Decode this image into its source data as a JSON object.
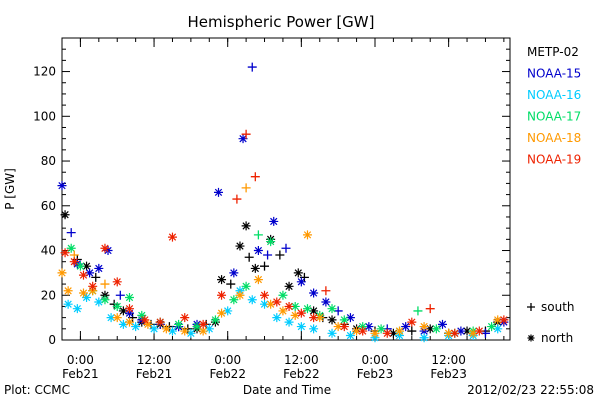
{
  "chart_data": {
    "type": "scatter",
    "title": "Hemispheric Power [GW]",
    "ylabel": "P [GW]",
    "xlabel": "Date and Time",
    "xlim": [
      "2012-02-20T21:00",
      "2012-02-23T22:00"
    ],
    "ylim": [
      0,
      135
    ],
    "y_ticks": [
      0,
      20,
      40,
      60,
      80,
      100,
      120
    ],
    "x_ticks": [
      {
        "t": "2012-02-21T00:00",
        "time": "0:00",
        "date": "Feb21"
      },
      {
        "t": "2012-02-21T12:00",
        "time": "12:00",
        "date": "Feb21"
      },
      {
        "t": "2012-02-22T00:00",
        "time": "0:00",
        "date": "Feb22"
      },
      {
        "t": "2012-02-22T12:00",
        "time": "12:00",
        "date": "Feb22"
      },
      {
        "t": "2012-02-23T00:00",
        "time": "0:00",
        "date": "Feb23"
      },
      {
        "t": "2012-02-23T12:00",
        "time": "12:00",
        "date": "Feb23"
      }
    ],
    "grid": false,
    "legend_position": "right",
    "hemisphere_legend": [
      {
        "symbol": "+",
        "label": "south"
      },
      {
        "symbol": "*",
        "label": "north"
      }
    ],
    "series": [
      {
        "name": "METP-02",
        "color": "#000000",
        "points": [
          [
            "2012-02-20T21:30",
            56,
            "north"
          ],
          [
            "2012-02-20T23:30",
            36,
            "south"
          ],
          [
            "2012-02-21T01:00",
            33,
            "north"
          ],
          [
            "2012-02-21T02:30",
            28,
            "south"
          ],
          [
            "2012-02-21T04:00",
            20,
            "north"
          ],
          [
            "2012-02-21T05:30",
            16,
            "south"
          ],
          [
            "2012-02-21T07:00",
            13,
            "north"
          ],
          [
            "2012-02-21T08:30",
            10,
            "south"
          ],
          [
            "2012-02-21T10:00",
            8,
            "north"
          ],
          [
            "2012-02-21T11:30",
            7,
            "south"
          ],
          [
            "2012-02-21T13:00",
            7,
            "north"
          ],
          [
            "2012-02-21T14:30",
            6,
            "south"
          ],
          [
            "2012-02-21T16:00",
            6,
            "north"
          ],
          [
            "2012-02-21T17:30",
            5,
            "south"
          ],
          [
            "2012-02-21T19:00",
            5,
            "north"
          ],
          [
            "2012-02-21T20:30",
            7,
            "south"
          ],
          [
            "2012-02-21T22:00",
            8,
            "north"
          ],
          [
            "2012-02-21T23:00",
            27,
            "north"
          ],
          [
            "2012-02-22T00:30",
            25,
            "south"
          ],
          [
            "2012-02-22T02:00",
            42,
            "north"
          ],
          [
            "2012-02-22T03:00",
            51,
            "north"
          ],
          [
            "2012-02-22T03:30",
            37,
            "south"
          ],
          [
            "2012-02-22T04:30",
            32,
            "north"
          ],
          [
            "2012-02-22T06:00",
            33,
            "south"
          ],
          [
            "2012-02-22T07:00",
            45,
            "north"
          ],
          [
            "2012-02-22T08:30",
            38,
            "south"
          ],
          [
            "2012-02-22T10:00",
            24,
            "north"
          ],
          [
            "2012-02-22T11:30",
            30,
            "north"
          ],
          [
            "2012-02-22T12:30",
            28,
            "south"
          ],
          [
            "2012-02-22T14:00",
            13,
            "north"
          ],
          [
            "2012-02-22T15:30",
            10,
            "south"
          ],
          [
            "2012-02-22T17:00",
            9,
            "north"
          ],
          [
            "2012-02-22T19:00",
            7,
            "south"
          ],
          [
            "2012-02-22T21:00",
            5,
            "north"
          ],
          [
            "2012-02-23T00:00",
            4,
            "south"
          ],
          [
            "2012-02-23T03:00",
            3,
            "north"
          ],
          [
            "2012-02-23T06:00",
            4,
            "south"
          ],
          [
            "2012-02-23T09:00",
            5,
            "north"
          ],
          [
            "2012-02-23T12:00",
            3,
            "south"
          ],
          [
            "2012-02-23T15:00",
            4,
            "north"
          ],
          [
            "2012-02-23T18:00",
            4,
            "south"
          ],
          [
            "2012-02-23T20:00",
            8,
            "north"
          ]
        ]
      },
      {
        "name": "NOAA-15",
        "color": "#0000cc",
        "points": [
          [
            "2012-02-20T21:00",
            69,
            "north"
          ],
          [
            "2012-02-20T22:30",
            48,
            "south"
          ],
          [
            "2012-02-20T23:30",
            34,
            "north"
          ],
          [
            "2012-02-21T01:30",
            30,
            "north"
          ],
          [
            "2012-02-21T03:00",
            32,
            "north"
          ],
          [
            "2012-02-21T04:30",
            40,
            "north"
          ],
          [
            "2012-02-21T06:30",
            20,
            "south"
          ],
          [
            "2012-02-21T08:00",
            12,
            "north"
          ],
          [
            "2012-02-21T10:00",
            9,
            "north"
          ],
          [
            "2012-02-21T13:00",
            7,
            "south"
          ],
          [
            "2012-02-21T16:00",
            6,
            "north"
          ],
          [
            "2012-02-21T19:00",
            7,
            "north"
          ],
          [
            "2012-02-21T22:30",
            66,
            "north"
          ],
          [
            "2012-02-22T01:00",
            30,
            "north"
          ],
          [
            "2012-02-22T02:30",
            90,
            "north"
          ],
          [
            "2012-02-22T04:00",
            122,
            "south"
          ],
          [
            "2012-02-22T05:00",
            40,
            "north"
          ],
          [
            "2012-02-22T06:30",
            38,
            "south"
          ],
          [
            "2012-02-22T07:30",
            53,
            "north"
          ],
          [
            "2012-02-22T09:30",
            41,
            "south"
          ],
          [
            "2012-02-22T12:00",
            26,
            "north"
          ],
          [
            "2012-02-22T14:00",
            21,
            "north"
          ],
          [
            "2012-02-22T16:00",
            17,
            "north"
          ],
          [
            "2012-02-22T18:00",
            13,
            "south"
          ],
          [
            "2012-02-22T20:00",
            10,
            "north"
          ],
          [
            "2012-02-22T23:00",
            6,
            "north"
          ],
          [
            "2012-02-23T02:00",
            5,
            "south"
          ],
          [
            "2012-02-23T05:00",
            6,
            "north"
          ],
          [
            "2012-02-23T08:00",
            4,
            "north"
          ],
          [
            "2012-02-23T11:00",
            7,
            "north"
          ],
          [
            "2012-02-23T14:00",
            4,
            "north"
          ],
          [
            "2012-02-23T18:00",
            3,
            "south"
          ],
          [
            "2012-02-23T21:00",
            8,
            "north"
          ]
        ]
      },
      {
        "name": "NOAA-16",
        "color": "#00ccff",
        "points": [
          [
            "2012-02-20T22:00",
            16,
            "north"
          ],
          [
            "2012-02-20T23:30",
            14,
            "north"
          ],
          [
            "2012-02-21T01:00",
            19,
            "north"
          ],
          [
            "2012-02-21T03:00",
            17,
            "north"
          ],
          [
            "2012-02-21T05:00",
            10,
            "north"
          ],
          [
            "2012-02-21T07:00",
            7,
            "north"
          ],
          [
            "2012-02-21T09:00",
            6,
            "north"
          ],
          [
            "2012-02-21T12:00",
            5,
            "north"
          ],
          [
            "2012-02-21T15:00",
            4,
            "north"
          ],
          [
            "2012-02-21T18:00",
            3,
            "north"
          ],
          [
            "2012-02-21T21:00",
            5,
            "north"
          ],
          [
            "2012-02-22T00:00",
            13,
            "north"
          ],
          [
            "2012-02-22T02:00",
            22,
            "north"
          ],
          [
            "2012-02-22T04:00",
            18,
            "north"
          ],
          [
            "2012-02-22T06:00",
            16,
            "north"
          ],
          [
            "2012-02-22T08:00",
            10,
            "north"
          ],
          [
            "2012-02-22T10:00",
            8,
            "north"
          ],
          [
            "2012-02-22T12:00",
            6,
            "north"
          ],
          [
            "2012-02-22T14:00",
            5,
            "north"
          ],
          [
            "2012-02-22T17:00",
            3,
            "north"
          ],
          [
            "2012-02-22T20:00",
            2,
            "north"
          ],
          [
            "2012-02-23T00:00",
            1,
            "north"
          ],
          [
            "2012-02-23T04:00",
            2,
            "north"
          ],
          [
            "2012-02-23T08:00",
            1,
            "north"
          ],
          [
            "2012-02-23T12:00",
            2,
            "north"
          ],
          [
            "2012-02-23T16:00",
            2,
            "north"
          ],
          [
            "2012-02-23T20:00",
            5,
            "north"
          ]
        ]
      },
      {
        "name": "NOAA-17",
        "color": "#00dd66",
        "points": [
          [
            "2012-02-20T22:30",
            41,
            "north"
          ],
          [
            "2012-02-21T00:00",
            33,
            "north"
          ],
          [
            "2012-02-21T02:00",
            22,
            "north"
          ],
          [
            "2012-02-21T04:00",
            18,
            "north"
          ],
          [
            "2012-02-21T06:00",
            15,
            "north"
          ],
          [
            "2012-02-21T08:00",
            19,
            "north"
          ],
          [
            "2012-02-21T10:00",
            11,
            "north"
          ],
          [
            "2012-02-21T13:00",
            8,
            "north"
          ],
          [
            "2012-02-21T16:00",
            7,
            "north"
          ],
          [
            "2012-02-21T19:00",
            6,
            "north"
          ],
          [
            "2012-02-21T22:00",
            9,
            "north"
          ],
          [
            "2012-02-22T01:00",
            18,
            "north"
          ],
          [
            "2012-02-22T03:00",
            24,
            "north"
          ],
          [
            "2012-02-22T05:00",
            47,
            "south"
          ],
          [
            "2012-02-22T07:00",
            44,
            "north"
          ],
          [
            "2012-02-22T09:00",
            20,
            "north"
          ],
          [
            "2012-02-22T11:00",
            15,
            "north"
          ],
          [
            "2012-02-22T13:00",
            14,
            "north"
          ],
          [
            "2012-02-22T15:00",
            11,
            "north"
          ],
          [
            "2012-02-22T17:00",
            14,
            "north"
          ],
          [
            "2012-02-22T19:00",
            9,
            "north"
          ],
          [
            "2012-02-22T22:00",
            6,
            "north"
          ],
          [
            "2012-02-23T01:00",
            5,
            "north"
          ],
          [
            "2012-02-23T04:00",
            4,
            "north"
          ],
          [
            "2012-02-23T07:00",
            13,
            "south"
          ],
          [
            "2012-02-23T10:00",
            5,
            "north"
          ],
          [
            "2012-02-23T13:00",
            3,
            "north"
          ],
          [
            "2012-02-23T16:00",
            4,
            "north"
          ],
          [
            "2012-02-23T19:00",
            6,
            "north"
          ]
        ]
      },
      {
        "name": "NOAA-18",
        "color": "#ff9900",
        "points": [
          [
            "2012-02-20T21:00",
            30,
            "north"
          ],
          [
            "2012-02-20T22:00",
            22,
            "north"
          ],
          [
            "2012-02-20T23:00",
            38,
            "south"
          ],
          [
            "2012-02-21T00:30",
            21,
            "north"
          ],
          [
            "2012-02-21T02:00",
            22,
            "north"
          ],
          [
            "2012-02-21T04:00",
            25,
            "south"
          ],
          [
            "2012-02-21T06:00",
            10,
            "north"
          ],
          [
            "2012-02-21T08:00",
            8,
            "north"
          ],
          [
            "2012-02-21T11:00",
            7,
            "north"
          ],
          [
            "2012-02-21T14:00",
            5,
            "north"
          ],
          [
            "2012-02-21T17:00",
            4,
            "north"
          ],
          [
            "2012-02-21T20:00",
            4,
            "north"
          ],
          [
            "2012-02-21T23:00",
            12,
            "north"
          ],
          [
            "2012-02-22T02:00",
            20,
            "north"
          ],
          [
            "2012-02-22T03:00",
            68,
            "south"
          ],
          [
            "2012-02-22T05:00",
            27,
            "north"
          ],
          [
            "2012-02-22T07:00",
            16,
            "north"
          ],
          [
            "2012-02-22T09:00",
            13,
            "north"
          ],
          [
            "2012-02-22T11:00",
            11,
            "north"
          ],
          [
            "2012-02-22T13:00",
            47,
            "north"
          ],
          [
            "2012-02-22T15:00",
            10,
            "north"
          ],
          [
            "2012-02-22T18:00",
            6,
            "north"
          ],
          [
            "2012-02-22T21:00",
            4,
            "north"
          ],
          [
            "2012-02-23T00:00",
            3,
            "north"
          ],
          [
            "2012-02-23T04:00",
            4,
            "north"
          ],
          [
            "2012-02-23T08:00",
            6,
            "north"
          ],
          [
            "2012-02-23T12:00",
            3,
            "north"
          ],
          [
            "2012-02-23T16:00",
            3,
            "north"
          ],
          [
            "2012-02-23T20:00",
            9,
            "north"
          ]
        ]
      },
      {
        "name": "NOAA-19",
        "color": "#ee2200",
        "points": [
          [
            "2012-02-20T21:30",
            39,
            "north"
          ],
          [
            "2012-02-20T23:00",
            35,
            "north"
          ],
          [
            "2012-02-21T00:30",
            29,
            "north"
          ],
          [
            "2012-02-21T02:00",
            24,
            "north"
          ],
          [
            "2012-02-21T04:00",
            41,
            "north"
          ],
          [
            "2012-02-21T06:00",
            26,
            "north"
          ],
          [
            "2012-02-21T08:00",
            14,
            "north"
          ],
          [
            "2012-02-21T10:30",
            9,
            "north"
          ],
          [
            "2012-02-21T13:00",
            8,
            "north"
          ],
          [
            "2012-02-21T15:00",
            46,
            "north"
          ],
          [
            "2012-02-21T17:00",
            10,
            "north"
          ],
          [
            "2012-02-21T20:00",
            7,
            "north"
          ],
          [
            "2012-02-21T23:00",
            20,
            "north"
          ],
          [
            "2012-02-22T01:30",
            63,
            "south"
          ],
          [
            "2012-02-22T03:00",
            92,
            "south"
          ],
          [
            "2012-02-22T04:30",
            73,
            "south"
          ],
          [
            "2012-02-22T06:00",
            20,
            "north"
          ],
          [
            "2012-02-22T08:00",
            17,
            "north"
          ],
          [
            "2012-02-22T10:00",
            15,
            "north"
          ],
          [
            "2012-02-22T12:00",
            12,
            "north"
          ],
          [
            "2012-02-22T14:00",
            10,
            "north"
          ],
          [
            "2012-02-22T16:00",
            22,
            "south"
          ],
          [
            "2012-02-22T19:00",
            6,
            "north"
          ],
          [
            "2012-02-22T22:00",
            4,
            "north"
          ],
          [
            "2012-02-23T02:00",
            3,
            "north"
          ],
          [
            "2012-02-23T06:00",
            8,
            "north"
          ],
          [
            "2012-02-23T09:00",
            14,
            "south"
          ],
          [
            "2012-02-23T13:00",
            3,
            "north"
          ],
          [
            "2012-02-23T17:00",
            4,
            "north"
          ],
          [
            "2012-02-23T21:00",
            9,
            "north"
          ]
        ]
      }
    ]
  },
  "footer": {
    "plot_source": "Plot: CCMC",
    "timestamp": "2012/02/23 22:55:08"
  }
}
